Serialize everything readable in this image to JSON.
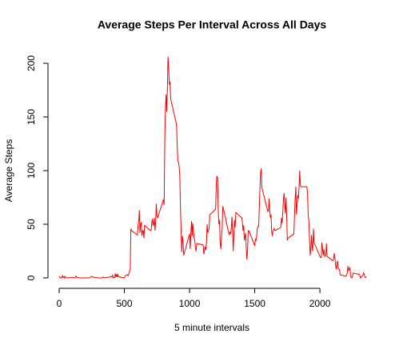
{
  "chart_data": {
    "type": "line",
    "title": "Average Steps Per Interval Across All Days",
    "x_label": "5 minute intervals",
    "y_label": "Average Steps",
    "color": "#ff0000",
    "xlim": [
      0,
      2355
    ],
    "xticks": [
      0,
      500,
      1000,
      1500,
      2000
    ],
    "ylim": [
      0,
      206
    ],
    "yticks": [
      0,
      50,
      100,
      150,
      200
    ],
    "x": [
      0,
      5,
      10,
      15,
      20,
      25,
      30,
      35,
      40,
      45,
      50,
      55,
      100,
      105,
      110,
      115,
      120,
      125,
      130,
      135,
      140,
      145,
      150,
      155,
      200,
      230,
      250,
      255,
      300,
      330,
      335,
      340,
      345,
      400,
      405,
      410,
      415,
      420,
      425,
      430,
      435,
      440,
      445,
      450,
      455,
      500,
      505,
      520,
      530,
      545,
      550,
      555,
      600,
      605,
      610,
      615,
      620,
      625,
      630,
      635,
      640,
      645,
      650,
      655,
      700,
      705,
      710,
      715,
      720,
      725,
      730,
      735,
      740,
      745,
      750,
      755,
      800,
      805,
      810,
      815,
      820,
      825,
      830,
      835,
      840,
      845,
      850,
      855,
      900,
      905,
      910,
      915,
      920,
      925,
      930,
      935,
      940,
      945,
      950,
      955,
      1000,
      1005,
      1010,
      1015,
      1020,
      1025,
      1030,
      1035,
      1040,
      1045,
      1050,
      1055,
      1100,
      1105,
      1110,
      1115,
      1120,
      1125,
      1130,
      1135,
      1140,
      1145,
      1150,
      1155,
      1200,
      1205,
      1210,
      1215,
      1220,
      1225,
      1230,
      1235,
      1240,
      1245,
      1250,
      1255,
      1300,
      1305,
      1310,
      1315,
      1320,
      1325,
      1330,
      1335,
      1340,
      1345,
      1350,
      1355,
      1400,
      1405,
      1410,
      1415,
      1420,
      1425,
      1430,
      1435,
      1440,
      1445,
      1450,
      1455,
      1500,
      1505,
      1510,
      1515,
      1520,
      1525,
      1530,
      1535,
      1540,
      1545,
      1550,
      1555,
      1600,
      1605,
      1610,
      1615,
      1620,
      1625,
      1630,
      1635,
      1640,
      1645,
      1650,
      1655,
      1700,
      1705,
      1710,
      1715,
      1720,
      1725,
      1730,
      1735,
      1740,
      1745,
      1750,
      1755,
      1800,
      1805,
      1810,
      1815,
      1820,
      1825,
      1830,
      1835,
      1840,
      1845,
      1850,
      1855,
      1900,
      1905,
      1910,
      1915,
      1920,
      1925,
      1930,
      1935,
      1940,
      1945,
      1950,
      1955,
      2000,
      2005,
      2010,
      2015,
      2020,
      2025,
      2030,
      2035,
      2040,
      2045,
      2050,
      2055,
      2100,
      2105,
      2110,
      2115,
      2120,
      2125,
      2130,
      2135,
      2140,
      2145,
      2150,
      2155,
      2200,
      2205,
      2210,
      2215,
      2220,
      2225,
      2230,
      2235,
      2240,
      2245,
      2250,
      2255,
      2300,
      2305,
      2310,
      2315,
      2320,
      2325,
      2330,
      2335,
      2340,
      2345,
      2350,
      2355
    ],
    "values": [
      1.7,
      0.3,
      0.1,
      0.2,
      0,
      2.1,
      0.5,
      0.9,
      0,
      1.5,
      0.3,
      0.1,
      0.3,
      0.7,
      0.2,
      0.3,
      0,
      1.1,
      1.8,
      0.2,
      0.2,
      0.4,
      0.3,
      0,
      0,
      0,
      1.5,
      0.9,
      0,
      0,
      0.8,
      0.5,
      0.1,
      1.2,
      0.9,
      2.6,
      0,
      0.3,
      0.4,
      4.1,
      0.7,
      3.5,
      0.8,
      3.1,
      1.1,
      0,
      1.6,
      3,
      2.1,
      8,
      46,
      44,
      40,
      49,
      53,
      63,
      42,
      50,
      52,
      39,
      44,
      44,
      37,
      49,
      44,
      44,
      51,
      55,
      49,
      50,
      56,
      44,
      52,
      69,
      58,
      56,
      73,
      68,
      129,
      158,
      171,
      155,
      177,
      206,
      196,
      180,
      183,
      167,
      143,
      124,
      109,
      108,
      104,
      96,
      66,
      45,
      24,
      39,
      35,
      21,
      41,
      27,
      42,
      53,
      39,
      51,
      44,
      37,
      35,
      28,
      25,
      32,
      31,
      30,
      22,
      26,
      29,
      26,
      33,
      50,
      42,
      44,
      46,
      59,
      64,
      88,
      95,
      93,
      63,
      50,
      54,
      32,
      27,
      38,
      45,
      67,
      42,
      40,
      43,
      41,
      46,
      57,
      43,
      25,
      40,
      54,
      47,
      61,
      56,
      52,
      44,
      49,
      35,
      38,
      42,
      27,
      17,
      26,
      44,
      44,
      30,
      36,
      35,
      39,
      46,
      48,
      48,
      65,
      83,
      98,
      102,
      84,
      62,
      62,
      74,
      63,
      56,
      59,
      43,
      39,
      44,
      45,
      46,
      44,
      47,
      56,
      51,
      61,
      73,
      79,
      69,
      60,
      75,
      57,
      35,
      37,
      41,
      58,
      74,
      85,
      59,
      68,
      77,
      74,
      85,
      100,
      86,
      85,
      85,
      78,
      58,
      53,
      36,
      21,
      27,
      40,
      30,
      25,
      46,
      33,
      20,
      19,
      19,
      33,
      27,
      21,
      27,
      21,
      20,
      21,
      32,
      20,
      16,
      17,
      23,
      19,
      12,
      8,
      14,
      16,
      9,
      8,
      8,
      3,
      1.5,
      3,
      5,
      11,
      7,
      8,
      10,
      2,
      0.3,
      0.1,
      1.6,
      4.6,
      3.3,
      3,
      0,
      0.8,
      1,
      1.6,
      2.6,
      4.7,
      3.3,
      0.6,
      0.2,
      1.1
    ]
  }
}
